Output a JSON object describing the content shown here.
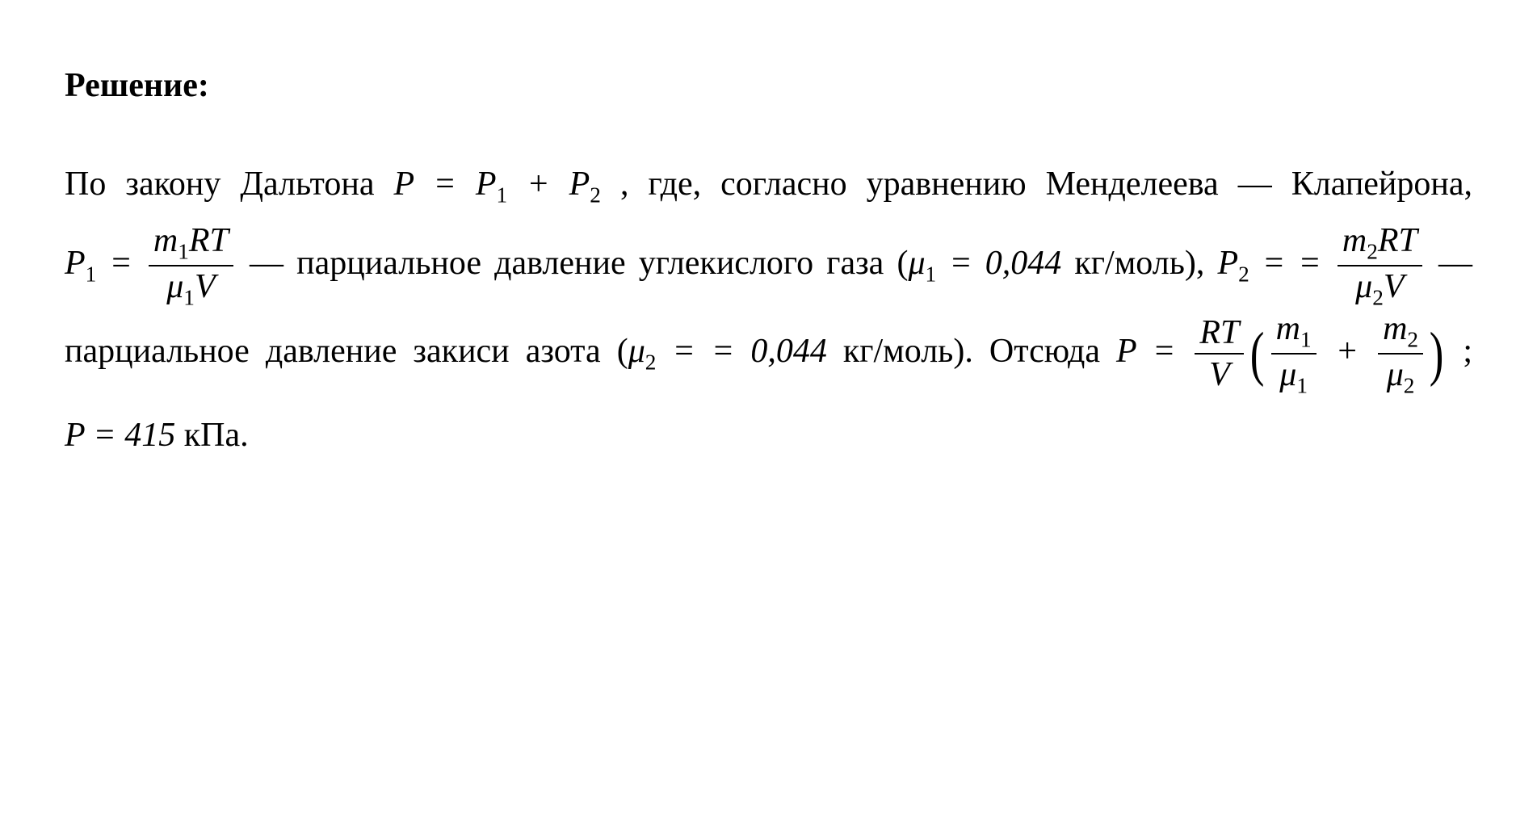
{
  "heading": "Решение:",
  "t1": "По закону Дальтона ",
  "eq1_P": "P",
  "eq1_eq": " = ",
  "eq1_P1": "P",
  "eq1_s1": "1",
  "eq1_plus": " + ",
  "eq1_P2": "P",
  "eq1_s2": "2",
  "t2": " , где, согласно уравнению Менделеева — Клапейрона,   ",
  "eq2_P": "P",
  "eq2_s1": "1",
  "eq2_eq": " = ",
  "eq2_num_m": "m",
  "eq2_num_s": "1",
  "eq2_num_RT": "RT",
  "eq2_den_mu": "μ",
  "eq2_den_s": "1",
  "eq2_den_V": "V",
  "t3": "   —   парциальное давление углекислого газа (",
  "mu1": "μ",
  "mu1_s": "1",
  "mu1_eq": " = 0,044",
  "mu1_u": " кг/моль",
  "t4": "),   ",
  "eq3_P": "P",
  "eq3_s2": "2",
  "eq3_eqA": " =",
  "eq3_eqB": "= ",
  "eq3_num_m": "m",
  "eq3_num_s": "2",
  "eq3_num_RT": "RT",
  "eq3_den_mu": "μ",
  "eq3_den_s": "2",
  "eq3_den_V": "V",
  "t5": "   —   парциальное давление закиси азота (",
  "mu2": "μ",
  "mu2_s": "2",
  "mu2_eq": " =",
  "mu2_val": "= 0,044",
  "mu2_u": " кг/моль",
  "t6": "). Отсюда  ",
  "eq4_P": "P",
  "eq4_eq": " = ",
  "eq4_f1_num": "RT",
  "eq4_f1_den": "V",
  "eq4_lp": "(",
  "eq4_fa_num_m": "m",
  "eq4_fa_num_s": "1",
  "eq4_fa_den_mu": "μ",
  "eq4_fa_den_s": "1",
  "eq4_plus": " + ",
  "eq4_fb_num_m": "m",
  "eq4_fb_num_s": "2",
  "eq4_fb_den_mu": "μ",
  "eq4_fb_den_s": "2",
  "eq4_rp": ")",
  "t7": " ;  ",
  "eq5_P": "P",
  "eq5_val": " = 415",
  "eq5_u": " кПа",
  "t8": "."
}
